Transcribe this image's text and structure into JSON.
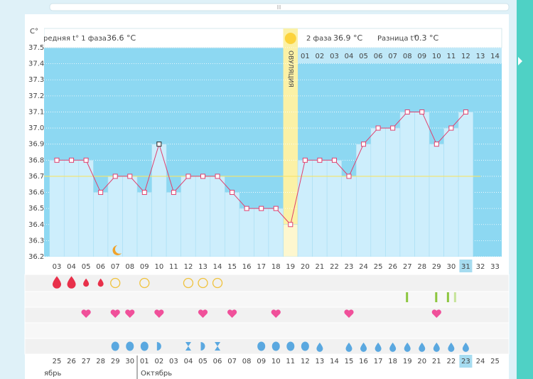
{
  "chart_data": {
    "type": "line",
    "y_axis_label": "C°",
    "ylim": [
      36.2,
      37.5
    ],
    "yticks": [
      36.2,
      36.3,
      36.4,
      36.5,
      36.6,
      36.7,
      36.8,
      36.9,
      {
        "value": 37,
        "label": "37.0"
      },
      37.1,
      37.2,
      37.3,
      37.4,
      37.5
    ],
    "grid": true,
    "categories": [
      "03",
      "04",
      "05",
      "06",
      "07",
      "08",
      "09",
      "10",
      "11",
      "12",
      "13",
      "14",
      "15",
      "16",
      "17",
      "18",
      "19",
      "20",
      "21",
      "22",
      "23",
      "24",
      "25",
      "26",
      "27",
      "28",
      "29",
      "30",
      "31",
      "32",
      "33"
    ],
    "series": [
      {
        "color": "#e0406e",
        "values": [
          36.8,
          36.8,
          36.8,
          36.6,
          36.7,
          36.7,
          36.6,
          36.9,
          36.6,
          36.7,
          36.7,
          36.7,
          36.6,
          36.5,
          36.5,
          36.5,
          36.4,
          36.8,
          36.8,
          36.8,
          36.7,
          36.9,
          37.0,
          37.0,
          37.1,
          37.1,
          36.9,
          37.0,
          37.1,
          null,
          null
        ]
      }
    ],
    "coverline": 36.7,
    "dates": [
      "25",
      "26",
      "27",
      "28",
      "29",
      "30",
      "01",
      "02",
      "03",
      "04",
      "05",
      "06",
      "07",
      "08",
      "09",
      "10",
      "11",
      "12",
      "13",
      "14",
      "15",
      "16",
      "17",
      "18",
      "19",
      "20",
      "21",
      "22",
      "23",
      "24",
      "25"
    ],
    "months": [
      "ябрь",
      "Октябрь"
    ],
    "header": {
      "phase1": "Средняя t° 1 фаза",
      "phase1_avg": "36.6 °C",
      "phase2": "2 фаза",
      "phase2_avg": "36.9 °C",
      "diff": "Разница t°",
      "diff_value": "0.3 °C",
      "ovulation": "ОВУЛЯЦИЯ",
      "phase2_days": [
        "01",
        "02",
        "03",
        "04",
        "05",
        "06",
        "07",
        "08",
        "09",
        "10",
        "11",
        "12",
        "13",
        "14"
      ]
    }
  }
}
